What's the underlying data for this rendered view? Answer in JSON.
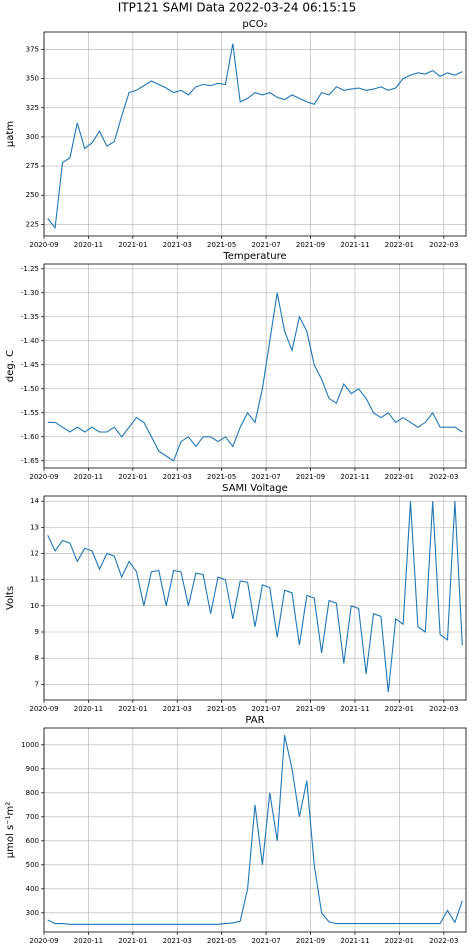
{
  "title": "ITP121 SAMI Data 2022-03-24 06:15:15",
  "chart_data": [
    {
      "type": "line",
      "title": "pCO₂",
      "ylabel": "µatm",
      "color": "#1f77b4",
      "grid": true,
      "x": [
        "2020-09",
        "2020-09",
        "2020-09",
        "2020-10",
        "2020-10",
        "2020-10",
        "2020-11",
        "2020-11",
        "2020-11",
        "2020-12",
        "2020-12",
        "2020-12",
        "2021-01",
        "2021-01",
        "2021-01",
        "2021-02",
        "2021-02",
        "2021-02",
        "2021-03",
        "2021-03",
        "2021-03",
        "2021-04",
        "2021-04",
        "2021-04",
        "2021-05",
        "2021-05",
        "2021-05",
        "2021-06",
        "2021-06",
        "2021-06",
        "2021-07",
        "2021-07",
        "2021-07",
        "2021-08",
        "2021-08",
        "2021-08",
        "2021-09",
        "2021-09",
        "2021-09",
        "2021-10",
        "2021-10",
        "2021-10",
        "2021-11",
        "2021-11",
        "2021-11",
        "2021-12",
        "2021-12",
        "2021-12",
        "2022-01",
        "2022-01",
        "2022-01",
        "2022-02",
        "2022-02",
        "2022-02",
        "2022-03",
        "2022-03",
        "2022-03"
      ],
      "values": [
        230,
        222,
        278,
        282,
        312,
        290,
        295,
        305,
        292,
        296,
        318,
        338,
        340,
        344,
        348,
        345,
        342,
        338,
        340,
        336,
        343,
        345,
        344,
        346,
        345,
        380,
        330,
        333,
        338,
        336,
        338,
        334,
        332,
        336,
        333,
        330,
        328,
        338,
        336,
        343,
        340,
        341,
        342,
        340,
        341,
        343,
        340,
        342,
        350,
        353,
        355,
        354,
        357,
        352,
        355,
        353,
        356
      ],
      "xlim": [
        "2020-09",
        "2022-04"
      ],
      "xticks": [
        "2020-09",
        "2020-11",
        "2021-01",
        "2021-03",
        "2021-05",
        "2021-07",
        "2021-09",
        "2021-11",
        "2022-01",
        "2022-03"
      ],
      "ylim": [
        215,
        390
      ],
      "yticks": [
        225,
        250,
        275,
        300,
        325,
        350,
        375
      ]
    },
    {
      "type": "line",
      "title": "Temperature",
      "ylabel": "deg. C",
      "color": "#1f77b4",
      "grid": true,
      "x": [
        "2020-09",
        "2020-09",
        "2020-09",
        "2020-10",
        "2020-10",
        "2020-10",
        "2020-11",
        "2020-11",
        "2020-11",
        "2020-12",
        "2020-12",
        "2020-12",
        "2021-01",
        "2021-01",
        "2021-01",
        "2021-02",
        "2021-02",
        "2021-02",
        "2021-03",
        "2021-03",
        "2021-03",
        "2021-04",
        "2021-04",
        "2021-04",
        "2021-05",
        "2021-05",
        "2021-05",
        "2021-06",
        "2021-06",
        "2021-06",
        "2021-07",
        "2021-07",
        "2021-07",
        "2021-08",
        "2021-08",
        "2021-08",
        "2021-09",
        "2021-09",
        "2021-09",
        "2021-10",
        "2021-10",
        "2021-10",
        "2021-11",
        "2021-11",
        "2021-11",
        "2021-12",
        "2021-12",
        "2021-12",
        "2022-01",
        "2022-01",
        "2022-01",
        "2022-02",
        "2022-02",
        "2022-02",
        "2022-03",
        "2022-03",
        "2022-03"
      ],
      "values": [
        -1.57,
        -1.57,
        -1.58,
        -1.59,
        -1.58,
        -1.59,
        -1.58,
        -1.59,
        -1.59,
        -1.58,
        -1.6,
        -1.58,
        -1.56,
        -1.57,
        -1.6,
        -1.63,
        -1.64,
        -1.65,
        -1.61,
        -1.6,
        -1.62,
        -1.6,
        -1.6,
        -1.61,
        -1.6,
        -1.62,
        -1.58,
        -1.55,
        -1.57,
        -1.5,
        -1.4,
        -1.3,
        -1.38,
        -1.42,
        -1.35,
        -1.38,
        -1.45,
        -1.48,
        -1.52,
        -1.53,
        -1.49,
        -1.51,
        -1.5,
        -1.52,
        -1.55,
        -1.56,
        -1.55,
        -1.57,
        -1.56,
        -1.57,
        -1.58,
        -1.57,
        -1.55,
        -1.58,
        -1.58,
        -1.58,
        -1.59
      ],
      "xlim": [
        "2020-09",
        "2022-04"
      ],
      "xticks": [
        "2020-09",
        "2020-11",
        "2021-01",
        "2021-03",
        "2021-05",
        "2021-07",
        "2021-09",
        "2021-11",
        "2022-01",
        "2022-03"
      ],
      "ylim": [
        -1.665,
        -1.24
      ],
      "yticks": [
        -1.65,
        {
          "value": -1.6,
          "label": "-1.60"
        },
        -1.55,
        {
          "value": -1.5,
          "label": "-1.50"
        },
        -1.45,
        {
          "value": -1.4,
          "label": "-1.40"
        },
        -1.35,
        {
          "value": -1.3,
          "label": "-1.30"
        },
        -1.25
      ]
    },
    {
      "type": "line",
      "title": "SAMI Voltage",
      "ylabel": "Volts",
      "color": "#1f77b4",
      "grid": true,
      "x": [
        "2020-09",
        "2020-09",
        "2020-09",
        "2020-10",
        "2020-10",
        "2020-10",
        "2020-11",
        "2020-11",
        "2020-11",
        "2020-12",
        "2020-12",
        "2020-12",
        "2021-01",
        "2021-01",
        "2021-01",
        "2021-02",
        "2021-02",
        "2021-02",
        "2021-03",
        "2021-03",
        "2021-03",
        "2021-04",
        "2021-04",
        "2021-04",
        "2021-05",
        "2021-05",
        "2021-05",
        "2021-06",
        "2021-06",
        "2021-06",
        "2021-07",
        "2021-07",
        "2021-07",
        "2021-08",
        "2021-08",
        "2021-08",
        "2021-09",
        "2021-09",
        "2021-09",
        "2021-10",
        "2021-10",
        "2021-10",
        "2021-11",
        "2021-11",
        "2021-11",
        "2021-12",
        "2021-12",
        "2021-12",
        "2022-01",
        "2022-01",
        "2022-01",
        "2022-02",
        "2022-02",
        "2022-02",
        "2022-03",
        "2022-03",
        "2022-03"
      ],
      "values": [
        12.7,
        12.1,
        12.5,
        12.4,
        11.7,
        12.2,
        12.1,
        11.4,
        12.0,
        11.9,
        11.1,
        11.7,
        11.3,
        10.0,
        11.3,
        11.35,
        10.0,
        11.35,
        11.3,
        10.0,
        11.25,
        11.2,
        9.7,
        11.1,
        11.0,
        9.5,
        10.95,
        10.9,
        9.2,
        10.8,
        10.7,
        8.8,
        10.6,
        10.5,
        8.5,
        10.4,
        10.3,
        8.2,
        10.2,
        10.1,
        7.8,
        10.0,
        9.9,
        7.4,
        9.7,
        9.6,
        6.7,
        9.5,
        9.3,
        14,
        9.2,
        9.0,
        14,
        8.9,
        8.7,
        14,
        8.5
      ],
      "xlim": [
        "2020-09",
        "2022-04"
      ],
      "xticks": [
        "2020-09",
        "2020-11",
        "2021-01",
        "2021-03",
        "2021-05",
        "2021-07",
        "2021-09",
        "2021-11",
        "2022-01",
        "2022-03"
      ],
      "ylim": [
        6.4,
        14.2
      ],
      "yticks": [
        7,
        8,
        9,
        10,
        11,
        12,
        13,
        14
      ]
    },
    {
      "type": "line",
      "title": "PAR",
      "ylabel": "µmol s⁻¹m²",
      "color": "#1f77b4",
      "grid": true,
      "x": [
        "2020-09",
        "2020-09",
        "2020-09",
        "2020-10",
        "2020-10",
        "2020-10",
        "2020-11",
        "2020-11",
        "2020-11",
        "2020-12",
        "2020-12",
        "2020-12",
        "2021-01",
        "2021-01",
        "2021-01",
        "2021-02",
        "2021-02",
        "2021-02",
        "2021-03",
        "2021-03",
        "2021-03",
        "2021-04",
        "2021-04",
        "2021-04",
        "2021-05",
        "2021-05",
        "2021-05",
        "2021-06",
        "2021-06",
        "2021-06",
        "2021-07",
        "2021-07",
        "2021-07",
        "2021-08",
        "2021-08",
        "2021-08",
        "2021-09",
        "2021-09",
        "2021-09",
        "2021-10",
        "2021-10",
        "2021-10",
        "2021-11",
        "2021-11",
        "2021-11",
        "2021-12",
        "2021-12",
        "2021-12",
        "2022-01",
        "2022-01",
        "2022-01",
        "2022-02",
        "2022-02",
        "2022-02",
        "2022-03",
        "2022-03",
        "2022-03"
      ],
      "values": [
        270,
        255,
        255,
        252,
        252,
        252,
        252,
        252,
        252,
        252,
        252,
        252,
        252,
        252,
        252,
        252,
        252,
        252,
        252,
        252,
        252,
        252,
        252,
        252,
        255,
        258,
        265,
        400,
        750,
        500,
        800,
        600,
        1040,
        900,
        700,
        850,
        500,
        300,
        262,
        255,
        255,
        255,
        255,
        255,
        255,
        255,
        255,
        255,
        255,
        255,
        255,
        255,
        255,
        255,
        310,
        260,
        350
      ],
      "xlim": [
        "2020-09",
        "2022-04"
      ],
      "xticks": [
        "2020-09",
        "2020-11",
        "2021-01",
        "2021-03",
        "2021-05",
        "2021-07",
        "2021-09",
        "2021-11",
        "2022-01",
        "2022-03"
      ],
      "ylim": [
        220,
        1070
      ],
      "yticks": [
        300,
        400,
        500,
        600,
        700,
        800,
        900,
        1000
      ]
    }
  ]
}
